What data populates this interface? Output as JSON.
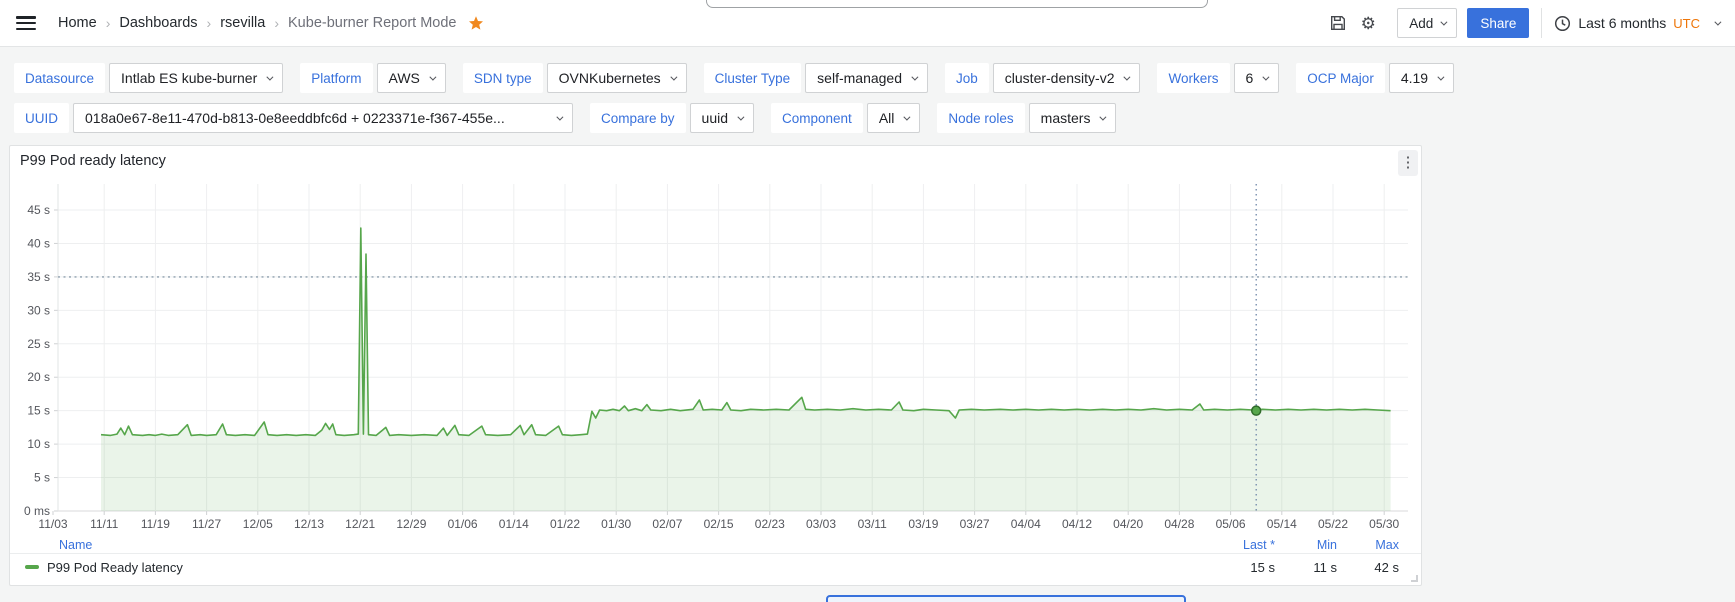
{
  "topbar": {
    "breadcrumbs": [
      {
        "label": "Home"
      },
      {
        "label": "Dashboards"
      },
      {
        "label": "rsevilla"
      },
      {
        "label": "Kube-burner Report Mode"
      }
    ],
    "actions": {
      "add_label": "Add",
      "share_label": "Share"
    },
    "time_picker": {
      "range": "Last 6 months",
      "timezone": "UTC"
    }
  },
  "filters": {
    "row1": [
      {
        "label": "Datasource",
        "value": "Intlab ES kube-burner"
      },
      {
        "label": "Platform",
        "value": "AWS"
      },
      {
        "label": "SDN type",
        "value": "OVNKubernetes"
      },
      {
        "label": "Cluster Type",
        "value": "self-managed"
      },
      {
        "label": "Job",
        "value": "cluster-density-v2"
      },
      {
        "label": "Workers",
        "value": "6"
      },
      {
        "label": "OCP Major",
        "value": "4.19"
      }
    ],
    "row2": [
      {
        "label": "UUID",
        "value": "018a0e67-8e11-470d-b813-0e8eeddbfc6d + 0223371e-f367-455e..."
      },
      {
        "label": "Compare by",
        "value": "uuid"
      },
      {
        "label": "Component",
        "value": "All"
      },
      {
        "label": "Node roles",
        "value": "masters"
      }
    ]
  },
  "panel": {
    "title": "P99 Pod ready latency",
    "legend": {
      "name_header": "Name",
      "stat_headers": [
        "Last *",
        "Min",
        "Max"
      ],
      "series": [
        {
          "label": "P99 Pod Ready latency",
          "color": "#56a64b",
          "values": [
            "15 s",
            "11 s",
            "42 s"
          ]
        }
      ]
    }
  },
  "chart_data": {
    "type": "line",
    "title": "P99 Pod ready latency",
    "unit": "seconds",
    "ylim": [
      0,
      45
    ],
    "grid": true,
    "legend_position": "bottom",
    "yticks": [
      "0 ms",
      "5 s",
      "10 s",
      "15 s",
      "20 s",
      "25 s",
      "30 s",
      "35 s",
      "40 s",
      "45 s"
    ],
    "xticks": [
      "11/03",
      "11/11",
      "11/19",
      "11/27",
      "12/05",
      "12/13",
      "12/21",
      "12/29",
      "01/06",
      "01/14",
      "01/22",
      "01/30",
      "02/07",
      "02/15",
      "02/23",
      "03/03",
      "03/11",
      "03/19",
      "03/27",
      "04/04",
      "04/12",
      "04/20",
      "04/28",
      "05/06",
      "05/14",
      "05/22",
      "05/30"
    ],
    "x_tick_interval_days": 8,
    "threshold": {
      "value": 35,
      "style": "dotted"
    },
    "annotation": {
      "day": 188,
      "value": 15
    },
    "series": [
      {
        "name": "P99 Pod Ready latency",
        "color": "#56a64b",
        "stats": {
          "last": "15 s",
          "min": "11 s",
          "max": "42 s"
        },
        "points": [
          [
            7.5,
            11.4
          ],
          [
            9,
            11.3
          ],
          [
            10,
            11.5
          ],
          [
            10.6,
            12.4
          ],
          [
            11.2,
            11.4
          ],
          [
            11.8,
            12.7
          ],
          [
            12.4,
            11.4
          ],
          [
            14,
            11.3
          ],
          [
            15,
            11.4
          ],
          [
            16,
            11.3
          ],
          [
            17,
            11.5
          ],
          [
            18,
            11.3
          ],
          [
            19.5,
            11.4
          ],
          [
            21,
            12.9
          ],
          [
            21.6,
            11.3
          ],
          [
            23,
            11.4
          ],
          [
            24,
            11.3
          ],
          [
            25.5,
            11.4
          ],
          [
            26.5,
            13.0
          ],
          [
            27.1,
            11.4
          ],
          [
            28.5,
            11.3
          ],
          [
            30,
            11.4
          ],
          [
            31.5,
            11.3
          ],
          [
            33,
            13.3
          ],
          [
            33.6,
            11.4
          ],
          [
            35,
            11.3
          ],
          [
            36.5,
            11.4
          ],
          [
            38,
            11.3
          ],
          [
            39.5,
            11.4
          ],
          [
            41,
            11.3
          ],
          [
            42,
            12.1
          ],
          [
            42.6,
            13.1
          ],
          [
            43.2,
            12.2
          ],
          [
            43.7,
            13.0
          ],
          [
            44.2,
            11.4
          ],
          [
            45.5,
            11.3
          ],
          [
            47,
            11.4
          ],
          [
            47.7,
            11.5
          ],
          [
            48.1,
            42.3
          ],
          [
            48.5,
            11.5
          ],
          [
            48.9,
            38.4
          ],
          [
            49.3,
            11.4
          ],
          [
            50.5,
            11.3
          ],
          [
            52,
            12.5
          ],
          [
            52.6,
            11.3
          ],
          [
            54,
            11.4
          ],
          [
            56,
            11.3
          ],
          [
            58,
            11.4
          ],
          [
            60,
            11.3
          ],
          [
            61,
            12.4
          ],
          [
            61.6,
            11.3
          ],
          [
            62.8,
            12.8
          ],
          [
            63.4,
            11.4
          ],
          [
            65,
            11.3
          ],
          [
            67,
            12.7
          ],
          [
            67.6,
            11.4
          ],
          [
            69.5,
            11.3
          ],
          [
            71.5,
            11.4
          ],
          [
            73,
            12.8
          ],
          [
            73.6,
            11.4
          ],
          [
            74.8,
            12.9
          ],
          [
            75.4,
            11.4
          ],
          [
            77,
            11.3
          ],
          [
            79,
            12.7
          ],
          [
            79.6,
            11.4
          ],
          [
            81,
            11.3
          ],
          [
            82.5,
            11.4
          ],
          [
            83.5,
            11.5
          ],
          [
            84.2,
            14.9
          ],
          [
            84.8,
            13.9
          ],
          [
            85.4,
            15.1
          ],
          [
            86.5,
            15.0
          ],
          [
            87.5,
            15.2
          ],
          [
            88.5,
            15.0
          ],
          [
            89.3,
            15.7
          ],
          [
            89.9,
            15.0
          ],
          [
            91,
            15.3
          ],
          [
            92,
            15.0
          ],
          [
            92.8,
            15.9
          ],
          [
            93.4,
            15.1
          ],
          [
            95,
            15.0
          ],
          [
            96.5,
            15.2
          ],
          [
            98,
            15.0
          ],
          [
            100,
            15.2
          ],
          [
            101,
            16.6
          ],
          [
            101.6,
            15.1
          ],
          [
            103,
            15.2
          ],
          [
            104.5,
            15.1
          ],
          [
            105.3,
            16.2
          ],
          [
            105.9,
            15.1
          ],
          [
            107.5,
            15.0
          ],
          [
            109,
            15.2
          ],
          [
            111,
            15.1
          ],
          [
            113,
            15.2
          ],
          [
            115,
            15.1
          ],
          [
            117,
            17.0
          ],
          [
            117.6,
            15.2
          ],
          [
            119,
            15.1
          ],
          [
            121,
            15.2
          ],
          [
            123,
            15.1
          ],
          [
            125,
            15.3
          ],
          [
            127,
            15.1
          ],
          [
            129,
            15.2
          ],
          [
            131,
            15.1
          ],
          [
            132.2,
            16.3
          ],
          [
            132.8,
            15.1
          ],
          [
            134.5,
            15.0
          ],
          [
            136,
            15.2
          ],
          [
            138,
            15.1
          ],
          [
            140,
            15.0
          ],
          [
            141,
            13.9
          ],
          [
            141.6,
            15.1
          ],
          [
            143.5,
            15.2
          ],
          [
            145.5,
            15.1
          ],
          [
            148,
            15.2
          ],
          [
            150,
            15.1
          ],
          [
            152,
            15.2
          ],
          [
            154,
            15.1
          ],
          [
            156,
            15.2
          ],
          [
            158,
            15.1
          ],
          [
            160,
            15.2
          ],
          [
            162,
            15.1
          ],
          [
            164,
            15.2
          ],
          [
            166,
            15.1
          ],
          [
            168,
            15.2
          ],
          [
            170,
            15.1
          ],
          [
            172,
            15.3
          ],
          [
            174,
            15.1
          ],
          [
            176,
            15.2
          ],
          [
            178,
            15.1
          ],
          [
            179.2,
            16.0
          ],
          [
            179.8,
            15.1
          ],
          [
            181.5,
            15.2
          ],
          [
            183.5,
            15.1
          ],
          [
            185.5,
            15.2
          ],
          [
            187.5,
            15.1
          ],
          [
            189,
            15.2
          ],
          [
            191,
            15.1
          ],
          [
            193,
            15.2
          ],
          [
            195,
            15.1
          ],
          [
            197,
            15.2
          ],
          [
            199,
            15.1
          ],
          [
            201,
            15.2
          ],
          [
            203,
            15.1
          ],
          [
            205,
            15.2
          ],
          [
            207,
            15.1
          ],
          [
            209,
            15.0
          ]
        ]
      }
    ]
  },
  "colors": {
    "accent_blue": "#3871dc",
    "orange": "#ee7609",
    "star": "#f0881e",
    "series_green": "#56a64b",
    "page_bg": "#f4f5f5",
    "threshold": "#8e9fae",
    "annotation": "#6f87a8"
  }
}
